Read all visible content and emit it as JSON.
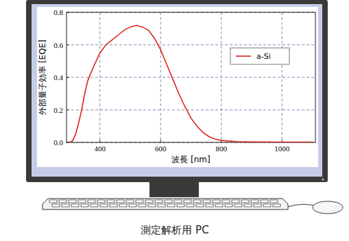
{
  "chart_data": {
    "type": "line",
    "x_label": "波長 [nm]",
    "y_label": "外部量子効率 [EQE]",
    "xlim": [
      290,
      1110
    ],
    "xticks": [
      400,
      600,
      800,
      1000
    ],
    "ylim": [
      0,
      0.8
    ],
    "yticks": [
      {
        "value": 0,
        "label": "0.0"
      },
      0.2,
      0.4,
      0.6,
      0.8
    ],
    "grid": true,
    "legend": "upper right",
    "series": [
      {
        "name": "a-Si",
        "color": "#e0241c",
        "x": [
          300,
          310,
          320,
          330,
          340,
          350,
          360,
          380,
          400,
          420,
          440,
          460,
          480,
          500,
          520,
          540,
          560,
          580,
          600,
          620,
          640,
          660,
          680,
          700,
          720,
          740,
          760,
          780,
          800,
          850,
          900,
          1000,
          1100
        ],
        "values": [
          0.0,
          0.01,
          0.05,
          0.12,
          0.2,
          0.3,
          0.38,
          0.47,
          0.55,
          0.6,
          0.63,
          0.66,
          0.69,
          0.71,
          0.72,
          0.71,
          0.69,
          0.64,
          0.57,
          0.48,
          0.39,
          0.3,
          0.22,
          0.15,
          0.1,
          0.06,
          0.035,
          0.02,
          0.012,
          0.005,
          0.003,
          0.002,
          0.002
        ]
      }
    ]
  },
  "caption": "測定解析用 PC"
}
